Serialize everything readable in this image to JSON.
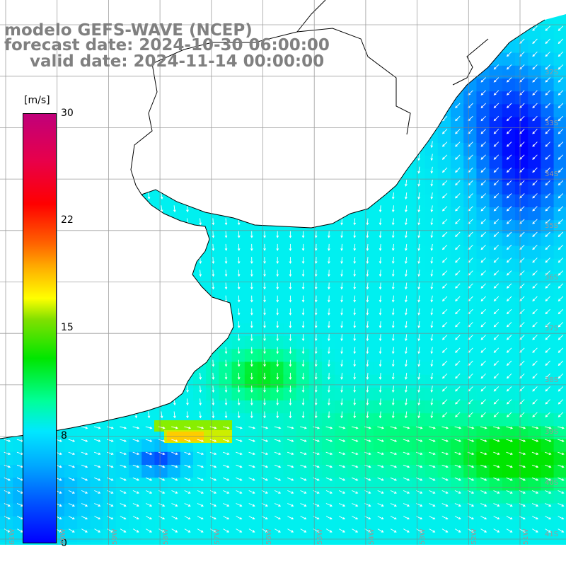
{
  "header": {
    "title": "modelo GEFS-WAVE (NCEP)",
    "forecast": "forecast date: 2024-10-30 06:00:00",
    "valid": "valid date: 2024-11-14 00:00:00"
  },
  "colorbar": {
    "unit": "[m/s]",
    "ticks": [
      {
        "label": "30",
        "value": 30
      },
      {
        "label": "22",
        "value": 22
      },
      {
        "label": "15",
        "value": 15
      },
      {
        "label": "8",
        "value": 8
      },
      {
        "label": "0",
        "value": 0
      }
    ],
    "range": [
      0,
      30
    ]
  },
  "grid": {
    "lat_labels": [
      "32S",
      "33S",
      "34S",
      "35S",
      "36S",
      "37S",
      "38S",
      "39S",
      "40S",
      "41S"
    ],
    "lon_labels": [
      "61W",
      "60W",
      "59W",
      "58W",
      "57W",
      "56W",
      "55W",
      "54W",
      "53W",
      "52W",
      "51W"
    ]
  },
  "colors": {
    "land": "#ffffff",
    "coast": "#000000",
    "grid": "#808080",
    "arrows": "#ffffff",
    "low": "#0000ff",
    "mid": "#00e8ff",
    "high": "#00e600"
  }
}
